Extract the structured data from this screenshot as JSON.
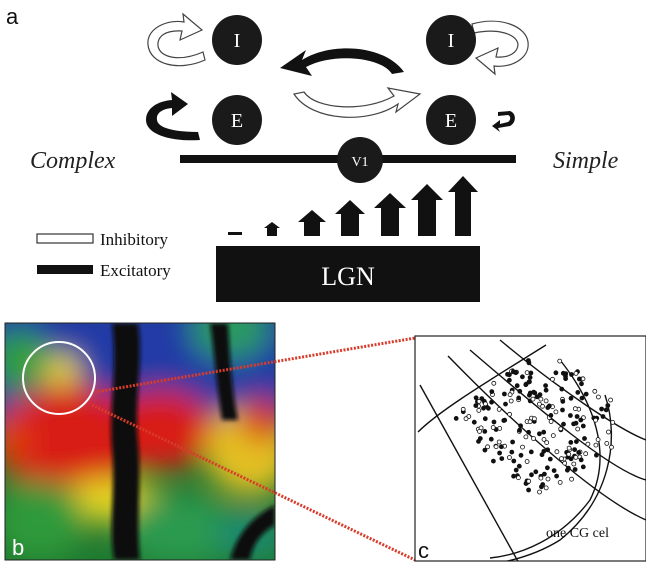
{
  "panel_a": {
    "label": "a",
    "nodes": {
      "inhibitory_left": "I",
      "inhibitory_right": "I",
      "excitatory_left": "E",
      "excitatory_right": "E",
      "v1": "V1"
    },
    "left_label": "Complex",
    "right_label": "Simple",
    "legend": {
      "inhibitory": "Inhibitory",
      "excitatory": "Excitatory"
    },
    "lgn_label": "LGN"
  },
  "panel_b": {
    "label": "b"
  },
  "panel_c": {
    "label": "c",
    "caption": "one CG cel"
  },
  "colors": {
    "node_fill": "#1a1a1a",
    "bar_fill": "#111111",
    "connector": "#d93b2a",
    "map_blue": "#233aa0",
    "map_green": "#2e9a3a",
    "map_red": "#d81a12",
    "map_yellow": "#e8e020",
    "map_vessel": "#0a0a0a"
  }
}
